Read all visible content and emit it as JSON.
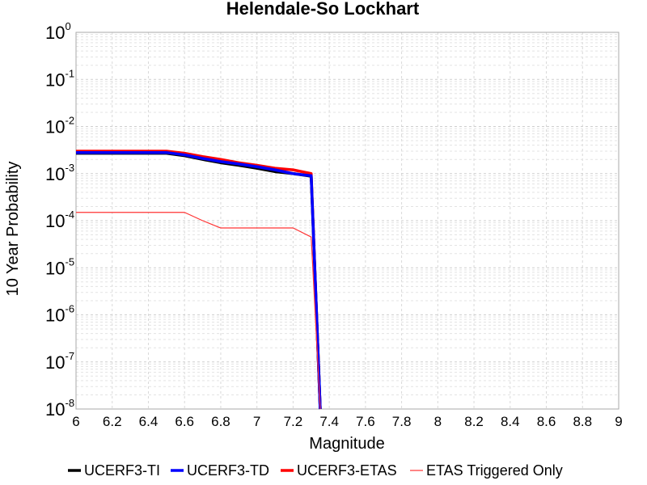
{
  "chart_data": {
    "type": "line",
    "title": "Helendale-So Lockhart",
    "xlabel": "Magnitude",
    "ylabel": "10 Year Probability",
    "xlim": [
      6,
      9
    ],
    "ylim": [
      1e-08,
      1
    ],
    "yscale": "log",
    "grid": true,
    "legend_position": "bottom",
    "x_ticks": [
      "6",
      "6.2",
      "6.4",
      "6.6",
      "6.8",
      "7",
      "7.2",
      "7.4",
      "7.6",
      "7.8",
      "8",
      "8.2",
      "8.4",
      "8.6",
      "8.8",
      "9"
    ],
    "y_ticks": [
      {
        "base": "10",
        "exp": "-8"
      },
      {
        "base": "10",
        "exp": "-7"
      },
      {
        "base": "10",
        "exp": "-6"
      },
      {
        "base": "10",
        "exp": "-5"
      },
      {
        "base": "10",
        "exp": "-4"
      },
      {
        "base": "10",
        "exp": "-3"
      },
      {
        "base": "10",
        "exp": "-2"
      },
      {
        "base": "10",
        "exp": "-1"
      },
      {
        "base": "10",
        "exp": "0"
      }
    ],
    "series": [
      {
        "name": "UCERF3-TI",
        "color": "#000000",
        "x": [
          6.0,
          6.1,
          6.2,
          6.3,
          6.4,
          6.5,
          6.6,
          6.7,
          6.8,
          6.9,
          7.0,
          7.1,
          7.2,
          7.3,
          7.35
        ],
        "y": [
          0.0027,
          0.0027,
          0.0027,
          0.0027,
          0.0027,
          0.0027,
          0.0024,
          0.002,
          0.0017,
          0.0015,
          0.0013,
          0.0011,
          0.001,
          0.00088,
          1e-08
        ]
      },
      {
        "name": "UCERF3-TD",
        "color": "#0000ff",
        "x": [
          6.0,
          6.1,
          6.2,
          6.3,
          6.4,
          6.5,
          6.6,
          6.7,
          6.8,
          6.9,
          7.0,
          7.1,
          7.2,
          7.3,
          7.35
        ],
        "y": [
          0.0028,
          0.0028,
          0.0028,
          0.0028,
          0.0028,
          0.0028,
          0.0025,
          0.0021,
          0.0018,
          0.0016,
          0.0014,
          0.0012,
          0.001,
          0.0009,
          1e-08
        ]
      },
      {
        "name": "UCERF3-ETAS",
        "color": "#ff0000",
        "x": [
          6.0,
          6.1,
          6.2,
          6.3,
          6.4,
          6.5,
          6.6,
          6.7,
          6.8,
          6.9,
          7.0,
          7.1,
          7.2,
          7.3,
          7.35
        ],
        "y": [
          0.003,
          0.003,
          0.003,
          0.003,
          0.003,
          0.003,
          0.0027,
          0.0023,
          0.002,
          0.0017,
          0.0015,
          0.0013,
          0.0012,
          0.001,
          1e-08
        ]
      },
      {
        "name": "ETAS Triggered Only",
        "color": "#ff3333",
        "x": [
          6.0,
          6.1,
          6.2,
          6.3,
          6.4,
          6.5,
          6.6,
          6.7,
          6.8,
          6.9,
          7.0,
          7.1,
          7.2,
          7.3,
          7.35
        ],
        "y": [
          0.00015,
          0.00015,
          0.00015,
          0.00015,
          0.00015,
          0.00015,
          0.00015,
          0.0001,
          7e-05,
          7e-05,
          7e-05,
          7e-05,
          7e-05,
          4.5e-05,
          1e-08
        ]
      }
    ]
  }
}
